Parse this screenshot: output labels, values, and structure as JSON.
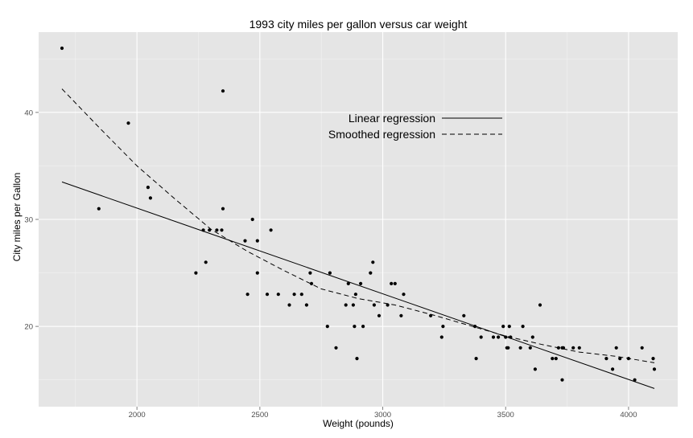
{
  "chart_data": {
    "type": "scatter",
    "title": "1993 city miles per gallon versus car weight",
    "xlabel": "Weight (pounds)",
    "ylabel": "City miles per Gallon",
    "xlim": [
      1600,
      4200
    ],
    "ylim": [
      12.5,
      47.5
    ],
    "xticks": [
      2000,
      2500,
      3000,
      3500,
      4000
    ],
    "yticks": [
      20,
      30,
      40
    ],
    "grid": true,
    "background": "#e5e5e5",
    "grid_major_color": "#ffffff",
    "grid_minor_color": "#f2f2f2",
    "legend": {
      "position": "top-center",
      "entries": [
        {
          "label": "Linear regression",
          "linestyle": "solid"
        },
        {
          "label": "Smoothed regression",
          "linestyle": "dashed"
        }
      ]
    },
    "points": [
      [
        1695,
        46
      ],
      [
        1845,
        31
      ],
      [
        1965,
        39
      ],
      [
        2045,
        33
      ],
      [
        2055,
        32
      ],
      [
        2240,
        25
      ],
      [
        2270,
        29
      ],
      [
        2280,
        26
      ],
      [
        2295,
        29
      ],
      [
        2325,
        29
      ],
      [
        2345,
        29
      ],
      [
        2350,
        42
      ],
      [
        2350,
        31
      ],
      [
        2440,
        28
      ],
      [
        2450,
        23
      ],
      [
        2470,
        30
      ],
      [
        2490,
        28
      ],
      [
        2490,
        25
      ],
      [
        2530,
        23
      ],
      [
        2545,
        29
      ],
      [
        2575,
        23
      ],
      [
        2620,
        22
      ],
      [
        2640,
        23
      ],
      [
        2670,
        23
      ],
      [
        2690,
        22
      ],
      [
        2705,
        25
      ],
      [
        2710,
        24
      ],
      [
        2775,
        20
      ],
      [
        2785,
        25
      ],
      [
        2810,
        18
      ],
      [
        2850,
        22
      ],
      [
        2860,
        24
      ],
      [
        2880,
        22
      ],
      [
        2885,
        20
      ],
      [
        2890,
        23
      ],
      [
        2895,
        17
      ],
      [
        2910,
        24
      ],
      [
        2920,
        20
      ],
      [
        2950,
        25
      ],
      [
        2960,
        26
      ],
      [
        2965,
        22
      ],
      [
        2985,
        21
      ],
      [
        3020,
        22
      ],
      [
        3035,
        24
      ],
      [
        3050,
        24
      ],
      [
        3075,
        21
      ],
      [
        3085,
        23
      ],
      [
        3195,
        21
      ],
      [
        3240,
        19
      ],
      [
        3245,
        20
      ],
      [
        3330,
        21
      ],
      [
        3375,
        20
      ],
      [
        3380,
        17
      ],
      [
        3400,
        19
      ],
      [
        3450,
        19
      ],
      [
        3470,
        19
      ],
      [
        3490,
        20
      ],
      [
        3500,
        19
      ],
      [
        3505,
        18
      ],
      [
        3510,
        18
      ],
      [
        3515,
        20
      ],
      [
        3520,
        19
      ],
      [
        3560,
        18
      ],
      [
        3570,
        20
      ],
      [
        3600,
        18
      ],
      [
        3610,
        19
      ],
      [
        3620,
        16
      ],
      [
        3640,
        22
      ],
      [
        3690,
        17
      ],
      [
        3705,
        17
      ],
      [
        3715,
        18
      ],
      [
        3730,
        18
      ],
      [
        3730,
        15
      ],
      [
        3735,
        18
      ],
      [
        3775,
        18
      ],
      [
        3800,
        18
      ],
      [
        3910,
        17
      ],
      [
        3935,
        16
      ],
      [
        3950,
        18
      ],
      [
        3965,
        17
      ],
      [
        4000,
        17
      ],
      [
        4025,
        15
      ],
      [
        4055,
        18
      ],
      [
        4100,
        17
      ],
      [
        4105,
        16
      ]
    ],
    "series": [
      {
        "name": "Linear regression",
        "linestyle": "solid",
        "x": [
          1695,
          4105
        ],
        "y": [
          33.5,
          14.2
        ]
      },
      {
        "name": "Smoothed regression",
        "linestyle": "dashed",
        "x": [
          1695,
          1850,
          2000,
          2150,
          2300,
          2450,
          2600,
          2750,
          2900,
          3050,
          3200,
          3350,
          3500,
          3650,
          3800,
          3950,
          4105
        ],
        "y": [
          42.2,
          38.5,
          35.0,
          32.0,
          29.1,
          27.0,
          25.2,
          23.5,
          22.6,
          22.0,
          21.1,
          20.1,
          19.1,
          18.3,
          17.6,
          17.2,
          16.6
        ]
      }
    ]
  }
}
